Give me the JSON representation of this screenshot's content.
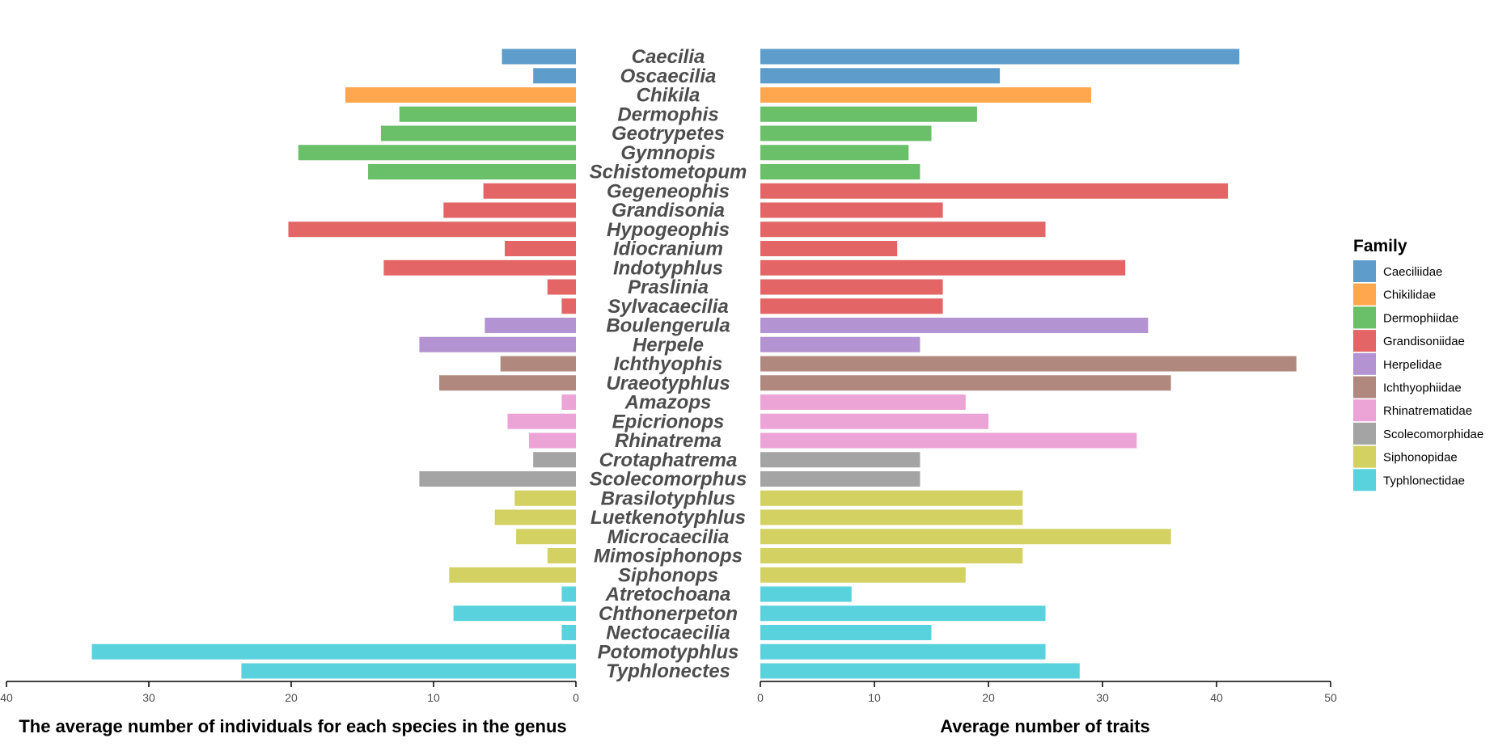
{
  "chart_data": {
    "type": "bar",
    "orientation": "horizontal",
    "layout": "back-to-back",
    "genera": [
      "Caecilia",
      "Oscaecilia",
      "Chikila",
      "Dermophis",
      "Geotrypetes",
      "Gymnopis",
      "Schistometopum",
      "Gegeneophis",
      "Grandisonia",
      "Hypogeophis",
      "Idiocranium",
      "Indotyphlus",
      "Praslinia",
      "Sylvacaecilia",
      "Boulengerula",
      "Herpele",
      "Ichthyophis",
      "Uraeotyphlus",
      "Amazops",
      "Epicrionops",
      "Rhinatrema",
      "Crotaphatrema",
      "Scolecomorphus",
      "Brasilotyphlus",
      "Luetkenotyphlus",
      "Microcaecilia",
      "Mimosiphonops",
      "Siphonops",
      "Atretochoana",
      "Chthonerpeton",
      "Nectocaecilia",
      "Potomotyphlus",
      "Typhlonectes"
    ],
    "families": [
      "Caeciliidae",
      "Caeciliidae",
      "Chikilidae",
      "Dermophiidae",
      "Dermophiidae",
      "Dermophiidae",
      "Dermophiidae",
      "Grandisoniidae",
      "Grandisoniidae",
      "Grandisoniidae",
      "Grandisoniidae",
      "Grandisoniidae",
      "Grandisoniidae",
      "Grandisoniidae",
      "Herpelidae",
      "Herpelidae",
      "Ichthyophiidae",
      "Ichthyophiidae",
      "Rhinatrematidae",
      "Rhinatrematidae",
      "Rhinatrematidae",
      "Scolecomorphidae",
      "Scolecomorphidae",
      "Siphonopidae",
      "Siphonopidae",
      "Siphonopidae",
      "Siphonopidae",
      "Siphonopidae",
      "Typhlonectidae",
      "Typhlonectidae",
      "Typhlonectidae",
      "Typhlonectidae",
      "Typhlonectidae"
    ],
    "series": [
      {
        "name": "The average number of individuals for each species in the genus",
        "side": "left",
        "values": [
          5.2,
          3.0,
          16.2,
          12.4,
          13.7,
          19.5,
          14.6,
          6.5,
          9.3,
          20.2,
          5.0,
          13.5,
          2.0,
          1.0,
          6.4,
          11.0,
          5.3,
          9.6,
          1.0,
          4.8,
          3.3,
          3.0,
          11.0,
          4.3,
          5.7,
          4.2,
          2.0,
          8.9,
          1.0,
          8.6,
          1.0,
          34.0,
          23.5
        ]
      },
      {
        "name": "Average number of traits",
        "side": "right",
        "values": [
          42,
          21,
          29,
          19,
          15,
          13,
          14,
          41,
          16,
          25,
          12,
          32,
          16,
          16,
          34,
          14,
          47,
          36,
          18,
          20,
          33,
          14,
          14,
          23,
          23,
          36,
          23,
          18,
          8,
          25,
          15,
          25,
          28
        ]
      }
    ],
    "left_axis": {
      "label": "The average number of individuals for each species in the genus",
      "ticks": [
        "40",
        "30",
        "20",
        "10",
        "0"
      ],
      "range": [
        0,
        40
      ],
      "reversed": true
    },
    "right_axis": {
      "label": "Average number of traits",
      "ticks": [
        "0",
        "10",
        "20",
        "30",
        "40",
        "50"
      ],
      "range": [
        0,
        50
      ]
    },
    "legend": {
      "title": "Family",
      "position": "right",
      "entries": [
        {
          "name": "Caeciliidae",
          "color": "#5e9ccb"
        },
        {
          "name": "Chikilidae",
          "color": "#ffa74e"
        },
        {
          "name": "Dermophiidae",
          "color": "#6abf69"
        },
        {
          "name": "Grandisoniidae",
          "color": "#e36565"
        },
        {
          "name": "Herpelidae",
          "color": "#b393d1"
        },
        {
          "name": "Ichthyophiidae",
          "color": "#b0887e"
        },
        {
          "name": "Rhinatrematidae",
          "color": "#eca3d6"
        },
        {
          "name": "Scolecomorphidae",
          "color": "#a4a4a4"
        },
        {
          "name": "Siphonopidae",
          "color": "#d2d162"
        },
        {
          "name": "Typhlonectidae",
          "color": "#5ad2de"
        }
      ]
    },
    "grid": false
  }
}
